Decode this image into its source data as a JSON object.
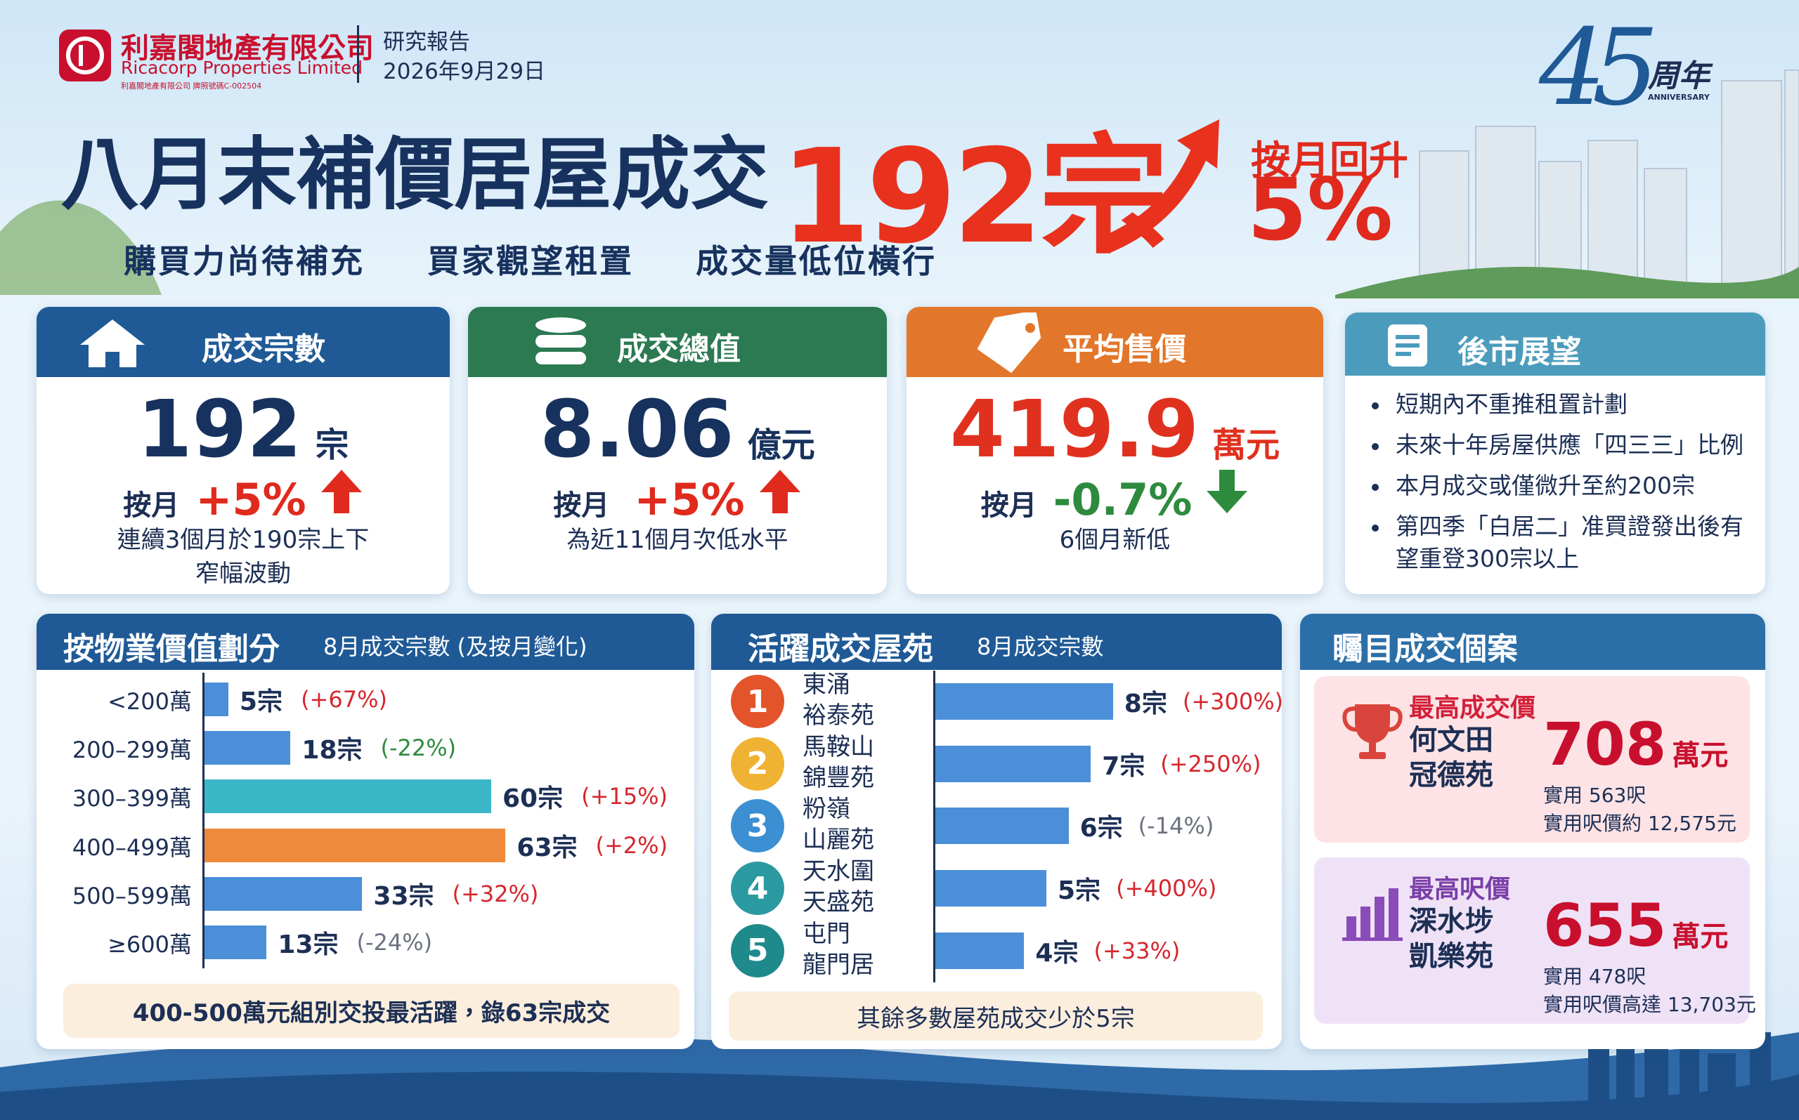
{
  "header": {
    "company_zh": "利嘉閣地產有限公司",
    "company_en": "Ricacorp Properties Limited",
    "license": "利嘉閣地產有限公司 牌照號碼C-002504",
    "report_type": "研究報告",
    "date": "2026年9月29日",
    "anniversary_number": "45",
    "anniversary": "周年",
    "anniversary_en": "ANNIVERSARY",
    "title": "八月末補價居屋成交",
    "headline_number": "192宗",
    "change_label": "按月回升",
    "change_value": "5%",
    "subtitle": [
      "購買力尚待補充",
      "買家觀望租置",
      "成交量低位橫行"
    ]
  },
  "cards": [
    {
      "title": "成交宗數",
      "value": "192",
      "unit": "宗",
      "change_prefix": "按月",
      "change": "+5%",
      "note": [
        "連續3個月於190宗上下",
        "窄幅波動"
      ]
    },
    {
      "title": "成交總值",
      "value": "8.06",
      "unit": "億元",
      "change_prefix": "按月",
      "change": "+5%",
      "note": [
        "為近11個月次低水平"
      ]
    },
    {
      "title": "平均售價",
      "value": "419.9",
      "unit": "萬元",
      "change_prefix": "按月",
      "change": "-0.7%",
      "note": [
        "6個月新低"
      ]
    }
  ],
  "outlook": {
    "title": "後市展望",
    "items": [
      "短期內不重推租置計劃",
      "未來十年房屋供應「四三三」比例",
      "本月成交或僅微升至約200宗",
      "第四季「白居二」准買證發出後有望重登300宗以上"
    ]
  },
  "price_bands": {
    "title": "按物業價值劃分",
    "subtitle": "8月成交宗數 (及按月變化)",
    "categories": [
      "<200萬",
      "200–299萬",
      "300–399萬",
      "400–499萬",
      "500–599萬",
      "≥600萬"
    ],
    "values": [
      5,
      18,
      60,
      63,
      33,
      13
    ],
    "value_labels": [
      "5宗",
      "18宗",
      "60宗",
      "63宗",
      "33宗",
      "13宗"
    ],
    "changes": [
      "(+67%)",
      "(-22%)",
      "(+15%)",
      "(+2%)",
      "(+32%)",
      "(-24%)"
    ],
    "colors": [
      "#4a8fd8",
      "#4a8fd8",
      "#3bb7c8",
      "#ef8a3c",
      "#4a8fd8",
      "#4a8fd8"
    ],
    "change_colors": [
      "#d6262e",
      "#2e8b3e",
      "#d6262e",
      "#d6262e",
      "#d6262e",
      "#6b7280"
    ],
    "footnote": "400-500萬元組別交投最活躍，錄63宗成交"
  },
  "estates": {
    "title": "活躍成交屋苑",
    "subtitle": "8月成交宗數",
    "ranks": [
      1,
      2,
      3,
      4,
      5
    ],
    "rank_colors": [
      "#e4542b",
      "#f0b232",
      "#3b8fd2",
      "#2a9aa0",
      "#1f8a8c"
    ],
    "names": [
      [
        "東涌",
        "裕泰苑"
      ],
      [
        "馬鞍山",
        "錦豐苑"
      ],
      [
        "粉嶺",
        "山麗苑"
      ],
      [
        "天水圍",
        "天盛苑"
      ],
      [
        "屯門",
        "龍門居"
      ]
    ],
    "values": [
      8,
      7,
      6,
      5,
      4
    ],
    "value_labels": [
      "8宗",
      "7宗",
      "6宗",
      "5宗",
      "4宗"
    ],
    "changes": [
      "(+300%)",
      "(+250%)",
      "(-14%)",
      "(+400%)",
      "(+33%)"
    ],
    "color": "#4a8fd8",
    "change_colors": [
      "#d6262e",
      "#d6262e",
      "#6b7280",
      "#d6262e",
      "#d6262e"
    ],
    "footnote": "其餘多數屋苑成交少於5宗"
  },
  "cases": {
    "title": "矚目成交個案",
    "items": [
      {
        "label": "最高成交價",
        "estate": [
          "何文田",
          "冠德苑"
        ],
        "value": "708",
        "unit": "萬元",
        "detail": [
          "實用 563呎",
          "實用呎價約 12,575元"
        ]
      },
      {
        "label": "最高呎價",
        "estate": [
          "深水埗",
          "凱樂苑"
        ],
        "value": "655",
        "unit": "萬元",
        "detail": [
          "實用 478呎",
          "實用呎價高達 13,703元"
        ]
      }
    ]
  }
}
